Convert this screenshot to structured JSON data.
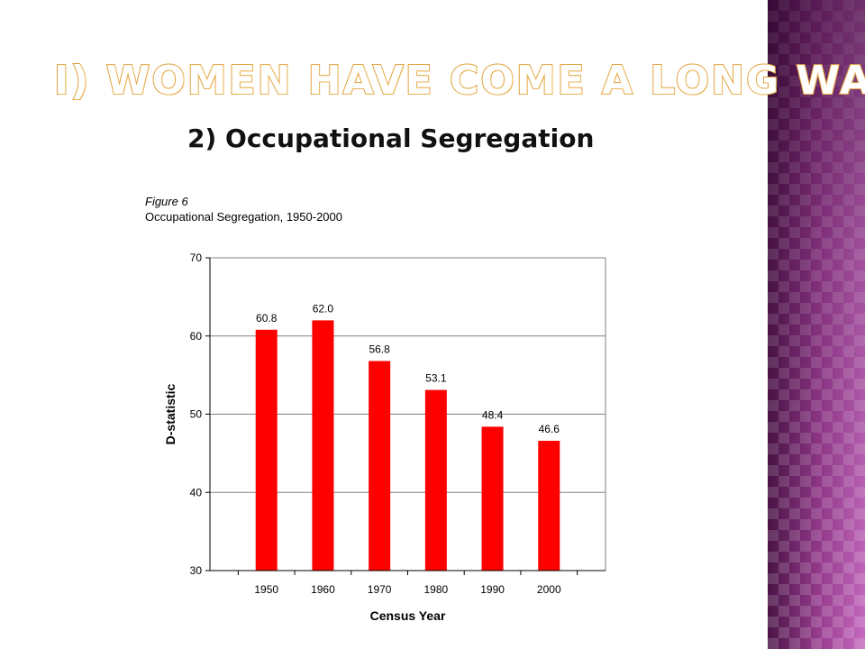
{
  "slide": {
    "title": "I) Women have come a long way",
    "subtitle": "2) Occupational Segregation"
  },
  "colors": {
    "bar": "#ff0000",
    "title_outline": "#e0a23d",
    "panel": "#8e3a86"
  },
  "chart_data": {
    "type": "bar",
    "figure_label": "Figure 6",
    "title": "Occupational Segregation, 1950-2000",
    "xlabel": "Census Year",
    "ylabel": "D-statistic",
    "categories": [
      "1950",
      "1960",
      "1970",
      "1980",
      "1990",
      "2000"
    ],
    "values": [
      60.8,
      62.0,
      56.8,
      53.1,
      48.4,
      46.6
    ],
    "data_labels": [
      "60.8",
      "62.0",
      "56.8",
      "53.1",
      "48.4",
      "46.6"
    ],
    "ylim": [
      30,
      70
    ],
    "yticks": [
      30,
      40,
      50,
      60,
      70
    ],
    "grid": true,
    "legend": false
  }
}
